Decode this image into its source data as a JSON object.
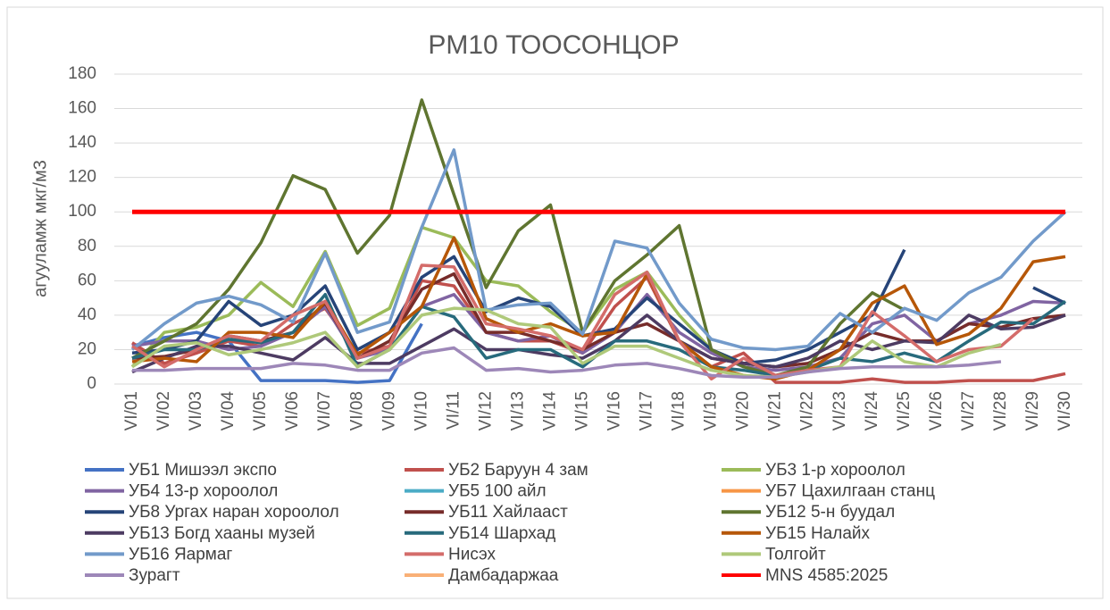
{
  "chart_data": {
    "type": "line",
    "title": "PM10 ТООСОНЦОР",
    "y_label": "агууламж мкг/м3",
    "categories": [
      "VI/01",
      "VI/02",
      "VI/03",
      "VI/04",
      "VI/05",
      "VI/06",
      "VI/07",
      "VI/08",
      "VI/09",
      "VI/10",
      "VI/11",
      "VI/12",
      "VI/13",
      "VI/14",
      "VI/15",
      "VI/16",
      "VI/17",
      "VI/18",
      "VI/19",
      "VI/20",
      "VI/21",
      "VI/22",
      "VI/23",
      "VI/24",
      "VI/25",
      "VI/26",
      "VI/27",
      "VI/28",
      "VI/29",
      "VI/30"
    ],
    "ylim": [
      0,
      180
    ],
    "yticks": [
      0,
      20,
      40,
      60,
      80,
      100,
      120,
      140,
      160,
      180
    ],
    "grid": true,
    "legend": "bottom",
    "series": [
      {
        "name": "УБ1 Мишээл экспо",
        "color": "#4472c4",
        "values": [
          22,
          27,
          30,
          25,
          2,
          2,
          2,
          1,
          2,
          35,
          null,
          null,
          null,
          null,
          null,
          null,
          null,
          null,
          null,
          null,
          null,
          null,
          null,
          null,
          null,
          null,
          null,
          null,
          null,
          null
        ]
      },
      {
        "name": "УБ2 Баруун 4 зам",
        "color": "#c0504d",
        "values": [
          24,
          12,
          18,
          25,
          22,
          35,
          44,
          18,
          22,
          60,
          57,
          30,
          25,
          25,
          18,
          45,
          62,
          25,
          10,
          18,
          1,
          1,
          1,
          3,
          1,
          1,
          2,
          2,
          2,
          6
        ]
      },
      {
        "name": "УБ3 1-р хороолол",
        "color": "#9bbb59",
        "values": [
          10,
          30,
          33,
          40,
          59,
          45,
          77,
          34,
          44,
          91,
          85,
          60,
          57,
          42,
          30,
          55,
          65,
          40,
          20,
          12,
          10,
          null,
          null,
          null,
          null,
          null,
          null,
          null,
          null,
          null
        ]
      },
      {
        "name": "УБ4 13-р хороолол",
        "color": "#8064a2",
        "values": [
          22,
          25,
          25,
          20,
          22,
          30,
          45,
          15,
          20,
          45,
          52,
          30,
          25,
          28,
          18,
          30,
          52,
          30,
          18,
          10,
          8,
          10,
          15,
          35,
          40,
          25,
          35,
          40,
          48,
          47
        ]
      },
      {
        "name": "УБ5 100 айл",
        "color": "#4bacc6",
        "values": [
          null,
          null,
          null,
          null,
          null,
          null,
          null,
          null,
          null,
          null,
          null,
          null,
          null,
          null,
          null,
          null,
          null,
          null,
          null,
          null,
          null,
          null,
          null,
          null,
          null,
          null,
          null,
          null,
          null,
          null
        ]
      },
      {
        "name": "УБ7 Цахилгаан станц",
        "color": "#f79646",
        "values": [
          null,
          null,
          null,
          null,
          null,
          null,
          null,
          null,
          null,
          null,
          null,
          null,
          null,
          null,
          null,
          null,
          null,
          null,
          null,
          null,
          null,
          null,
          null,
          null,
          null,
          null,
          null,
          null,
          null,
          null
        ]
      },
      {
        "name": "УБ8 Ургах наран хороолол",
        "color": "#264478",
        "values": [
          18,
          20,
          25,
          48,
          34,
          40,
          57,
          20,
          30,
          62,
          74,
          42,
          50,
          45,
          28,
          32,
          50,
          35,
          20,
          12,
          14,
          20,
          30,
          40,
          78,
          null,
          null,
          null,
          56,
          47
        ]
      },
      {
        "name": "УБ11 Хайлааст",
        "color": "#772c2a",
        "values": [
          15,
          16,
          20,
          28,
          25,
          30,
          47,
          15,
          25,
          55,
          64,
          30,
          30,
          25,
          20,
          30,
          35,
          25,
          15,
          12,
          10,
          12,
          20,
          30,
          25,
          25,
          35,
          33,
          38,
          40
        ]
      },
      {
        "name": "УБ12 5-н буудал",
        "color": "#5f7530",
        "values": [
          15,
          25,
          35,
          55,
          82,
          121,
          113,
          76,
          98,
          165,
          110,
          56,
          89,
          104,
          30,
          60,
          75,
          92,
          20,
          10,
          5,
          10,
          35,
          53,
          43,
          null,
          null,
          null,
          null,
          null
        ]
      },
      {
        "name": "УБ13 Богд хааны музей",
        "color": "#4d3b62",
        "values": [
          7,
          15,
          22,
          22,
          18,
          14,
          27,
          12,
          12,
          22,
          32,
          20,
          20,
          17,
          15,
          25,
          40,
          25,
          15,
          12,
          10,
          15,
          25,
          20,
          25,
          24,
          40,
          32,
          33,
          40
        ]
      },
      {
        "name": "УБ14 Шархад",
        "color": "#276a7c",
        "values": [
          15,
          20,
          20,
          26,
          24,
          30,
          52,
          10,
          20,
          45,
          39,
          15,
          20,
          20,
          10,
          25,
          25,
          20,
          10,
          8,
          5,
          8,
          15,
          13,
          18,
          13,
          25,
          36,
          35,
          48
        ]
      },
      {
        "name": "УБ15 Налайх",
        "color": "#b65708",
        "values": [
          13,
          15,
          13,
          30,
          30,
          27,
          48,
          17,
          30,
          45,
          85,
          38,
          30,
          35,
          28,
          30,
          64,
          25,
          10,
          5,
          3,
          8,
          20,
          47,
          57,
          23,
          29,
          44,
          71,
          74
        ]
      },
      {
        "name": "УБ16 Яармаг",
        "color": "#729aca",
        "values": [
          20,
          35,
          47,
          51,
          46,
          36,
          76,
          30,
          36,
          91,
          136,
          43,
          46,
          47,
          29,
          83,
          79,
          47,
          26,
          21,
          20,
          22,
          41,
          30,
          44,
          37,
          53,
          62,
          83,
          100
        ]
      },
      {
        "name": "Нисэх",
        "color": "#d46c6a",
        "values": [
          22,
          10,
          20,
          28,
          25,
          40,
          48,
          15,
          22,
          69,
          68,
          35,
          32,
          28,
          20,
          52,
          65,
          25,
          3,
          15,
          5,
          8,
          10,
          42,
          28,
          13,
          20,
          22,
          38,
          null
        ]
      },
      {
        "name": "Толгойт",
        "color": "#afc97a",
        "values": [
          10,
          22,
          24,
          17,
          20,
          24,
          30,
          10,
          20,
          40,
          44,
          43,
          35,
          33,
          12,
          22,
          22,
          15,
          8,
          5,
          4,
          7,
          10,
          25,
          13,
          10,
          18,
          23,
          null,
          null
        ]
      },
      {
        "name": "Зурагт",
        "color": "#9d87b8",
        "values": [
          8,
          8,
          9,
          9,
          9,
          12,
          11,
          8,
          8,
          18,
          21,
          8,
          9,
          7,
          8,
          11,
          12,
          9,
          5,
          4,
          4,
          7,
          9,
          10,
          10,
          10,
          11,
          13,
          null,
          null
        ]
      },
      {
        "name": "Дамбадаржаа",
        "color": "#f9b077",
        "values": [
          null,
          null,
          null,
          null,
          null,
          null,
          null,
          null,
          null,
          null,
          null,
          null,
          null,
          null,
          null,
          null,
          null,
          null,
          null,
          null,
          null,
          null,
          null,
          null,
          null,
          null,
          null,
          null,
          null,
          null
        ]
      },
      {
        "name": "MNS 4585:2025",
        "color": "#ff0000",
        "values": [
          100,
          100,
          100,
          100,
          100,
          100,
          100,
          100,
          100,
          100,
          100,
          100,
          100,
          100,
          100,
          100,
          100,
          100,
          100,
          100,
          100,
          100,
          100,
          100,
          100,
          100,
          100,
          100,
          100,
          100
        ]
      }
    ]
  }
}
